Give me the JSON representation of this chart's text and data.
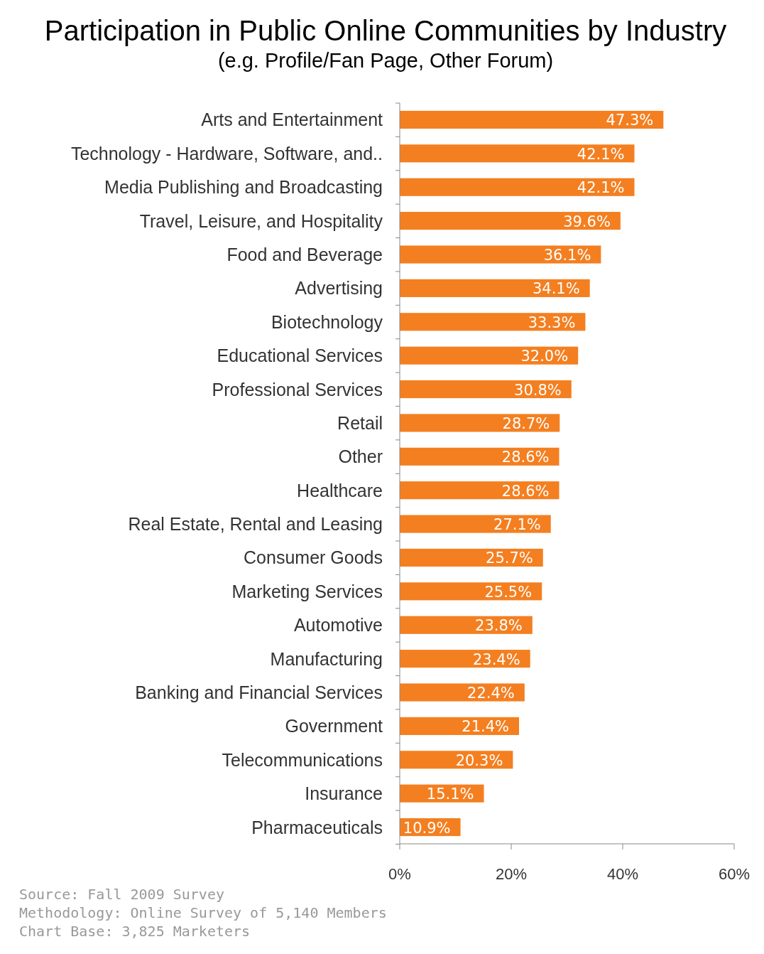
{
  "chart_data": {
    "type": "bar",
    "orientation": "horizontal",
    "title": "Participation in Public Online Communities by Industry",
    "subtitle": "(e.g. Profile/Fan Page, Other Forum)",
    "categories": [
      "Arts and Entertainment",
      "Technology - Hardware, Software, and..",
      "Media Publishing and Broadcasting",
      "Travel, Leisure, and Hospitality",
      "Food and Beverage",
      "Advertising",
      "Biotechnology",
      "Educational Services",
      "Professional Services",
      "Retail",
      "Other",
      "Healthcare",
      "Real Estate, Rental and Leasing",
      "Consumer Goods",
      "Marketing Services",
      "Automotive",
      "Manufacturing",
      "Banking and Financial Services",
      "Government",
      "Telecommunications",
      "Insurance",
      "Pharmaceuticals"
    ],
    "values": [
      47.3,
      42.1,
      42.1,
      39.6,
      36.1,
      34.1,
      33.3,
      32.0,
      30.8,
      28.7,
      28.6,
      28.6,
      27.1,
      25.7,
      25.5,
      23.8,
      23.4,
      22.4,
      21.4,
      20.3,
      15.1,
      10.9
    ],
    "value_labels": [
      "47.3%",
      "42.1%",
      "42.1%",
      "39.6%",
      "36.1%",
      "34.1%",
      "33.3%",
      "32.0%",
      "30.8%",
      "28.7%",
      "28.6%",
      "28.6%",
      "27.1%",
      "25.7%",
      "25.5%",
      "23.8%",
      "23.4%",
      "22.4%",
      "21.4%",
      "20.3%",
      "15.1%",
      "10.9%"
    ],
    "color": "#f47f20",
    "xlim": [
      0,
      60
    ],
    "xticks": [
      {
        "value": 0,
        "label": "0%"
      },
      {
        "value": 20,
        "label": "20%"
      },
      {
        "value": 40,
        "label": "40%"
      },
      {
        "value": 60,
        "label": "60%"
      }
    ],
    "grid": false,
    "annotations": [
      "Source: Fall 2009 Survey",
      "Methodology: Online Survey of 5,140 Members",
      "Chart Base: 3,825 Marketers"
    ]
  }
}
